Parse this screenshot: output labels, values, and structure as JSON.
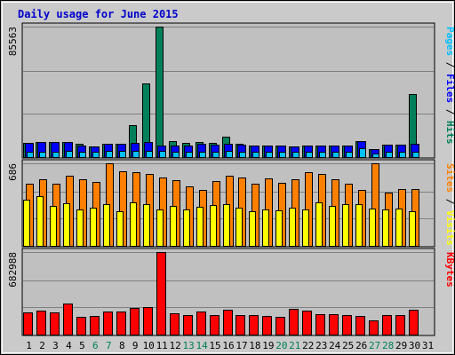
{
  "chart_data": {
    "type": "bar",
    "title": "Daily usage for June 2015",
    "categories": [
      "1",
      "2",
      "3",
      "4",
      "5",
      "6",
      "7",
      "8",
      "9",
      "10",
      "11",
      "12",
      "13",
      "14",
      "15",
      "16",
      "17",
      "18",
      "19",
      "20",
      "21",
      "22",
      "23",
      "24",
      "25",
      "26",
      "27",
      "28",
      "29",
      "30",
      "31"
    ],
    "weekend_days": [
      6,
      7,
      13,
      14,
      20,
      21,
      27,
      28
    ],
    "weekend_color": "#00805a",
    "panels": [
      {
        "name": "hits-files-pages",
        "ymax": 85563,
        "ymax_label": "85563",
        "right_label": [
          {
            "text": "Pages",
            "color": "#00c0ff"
          },
          {
            "text": " / ",
            "color": "#000000"
          },
          {
            "text": "Files",
            "color": "#0000ff"
          },
          {
            "text": " / ",
            "color": "#000000"
          },
          {
            "text": "Hits",
            "color": "#00805a"
          }
        ],
        "series": [
          {
            "name": "Hits",
            "color": "#00805a",
            "values": [
              9600,
              10000,
              10000,
              10000,
              8500,
              7000,
              8600,
              9000,
              20800,
              48500,
              85563,
              10300,
              9600,
              9900,
              9500,
              13500,
              8500,
              7300,
              7300,
              7400,
              7000,
              7800,
              7800,
              7700,
              7800,
              10700,
              5500,
              8300,
              8000,
              41500,
              null
            ]
          },
          {
            "name": "Files",
            "color": "#0000ff",
            "values": [
              9600,
              10000,
              10000,
              10000,
              7500,
              7000,
              8600,
              9000,
              9400,
              10000,
              7500,
              7600,
              7400,
              8800,
              8300,
              8600,
              8000,
              7300,
              7300,
              7400,
              7000,
              7800,
              7800,
              7700,
              7800,
              10200,
              5500,
              8300,
              8000,
              9000,
              null
            ]
          },
          {
            "name": "Pages",
            "color": "#00c0ff",
            "values": [
              3300,
              3700,
              3500,
              3900,
              3400,
              3500,
              3900,
              3800,
              4000,
              4300,
              4000,
              3700,
              3600,
              3600,
              3600,
              4000,
              3500,
              3500,
              3300,
              3400,
              3500,
              3700,
              3600,
              3500,
              3600,
              5900,
              2500,
              3300,
              3300,
              3600,
              null
            ]
          }
        ]
      },
      {
        "name": "visits-sites",
        "ymax": 686,
        "ymax_label": "686",
        "right_label": [
          {
            "text": "Sites",
            "color": "#ff8000"
          },
          {
            "text": " / ",
            "color": "#000000"
          },
          {
            "text": "Visits",
            "color": "#ffff00"
          }
        ],
        "series": [
          {
            "name": "Visits",
            "color": "#ffff00",
            "values": [
              385,
              410,
              330,
              355,
              300,
              315,
              345,
              290,
              360,
              350,
              305,
              330,
              305,
              325,
              340,
              345,
              315,
              290,
              305,
              295,
              320,
              300,
              365,
              330,
              350,
              345,
              310,
              305,
              310,
              290,
              null
            ]
          },
          {
            "name": "Sites",
            "color": "#ff8000",
            "values": [
              520,
              555,
              520,
              580,
              550,
              530,
              686,
              620,
              610,
              600,
              570,
              545,
              495,
              465,
              535,
              580,
              565,
              520,
              560,
              525,
              555,
              610,
              600,
              555,
              515,
              465,
              686,
              440,
              475,
              475,
              null
            ]
          }
        ]
      },
      {
        "name": "kbytes",
        "ymax": 682988,
        "ymax_label": "682988",
        "right_label": [
          {
            "text": "KBytes",
            "color": "#ff0000"
          }
        ],
        "series": [
          {
            "name": "KBytes",
            "color": "#ff0000",
            "values": [
              185000,
              195000,
              185000,
              256000,
              148000,
              155000,
              190000,
              190000,
              220000,
              225000,
              682988,
              175000,
              165000,
              190000,
              165000,
              205000,
              165000,
              165000,
              155000,
              145000,
              210000,
              195000,
              170000,
              170000,
              160000,
              155000,
              120000,
              165000,
              160000,
              205000,
              null
            ]
          }
        ]
      }
    ]
  }
}
